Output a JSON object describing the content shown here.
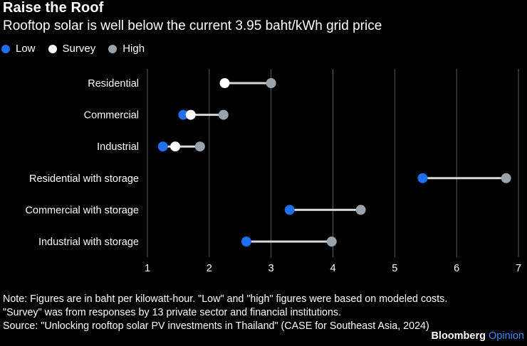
{
  "chart_data": {
    "type": "dumbbell",
    "title": "Raise the Roof",
    "subtitle": "Rooftop solar is well below the current 3.95 baht/kWh grid price",
    "legend": [
      {
        "name": "Low",
        "color": "#1f6ff0"
      },
      {
        "name": "Survey",
        "color": "#ffffff"
      },
      {
        "name": "High",
        "color": "#9aa3ab"
      }
    ],
    "categories": [
      "Residential",
      "Commercial",
      "Industrial",
      "Residential with storage",
      "Commercial with storage",
      "Industrial with storage"
    ],
    "series": [
      {
        "name": "Low",
        "values": [
          null,
          1.58,
          1.25,
          5.45,
          3.3,
          2.6
        ]
      },
      {
        "name": "Survey",
        "values": [
          2.25,
          1.7,
          1.45,
          null,
          null,
          null
        ]
      },
      {
        "name": "High",
        "values": [
          3.0,
          2.23,
          1.85,
          6.8,
          4.45,
          3.98
        ]
      }
    ],
    "xlim": [
      1,
      7
    ],
    "xticks": [
      "1",
      "2",
      "3",
      "4",
      "5",
      "6",
      "7"
    ],
    "grid": true,
    "legend_position": "top-left"
  },
  "notes": {
    "line1": "Note: Figures are in baht per kilowatt-hour. \"Low\" and \"high\" figures were based on modeled costs.",
    "line2": "\"Survey\" was from responses by 13 private sector and financial institutions.",
    "line3": "Source: \"Unlocking rooftop solar PV investments in Thailand\" (CASE for Southeast Asia, 2024)"
  },
  "brand": {
    "name": "Bloomberg",
    "accent": "Opinion"
  },
  "colors": {
    "connector": "#d9d9d9",
    "grid": "#5a5a5a"
  }
}
